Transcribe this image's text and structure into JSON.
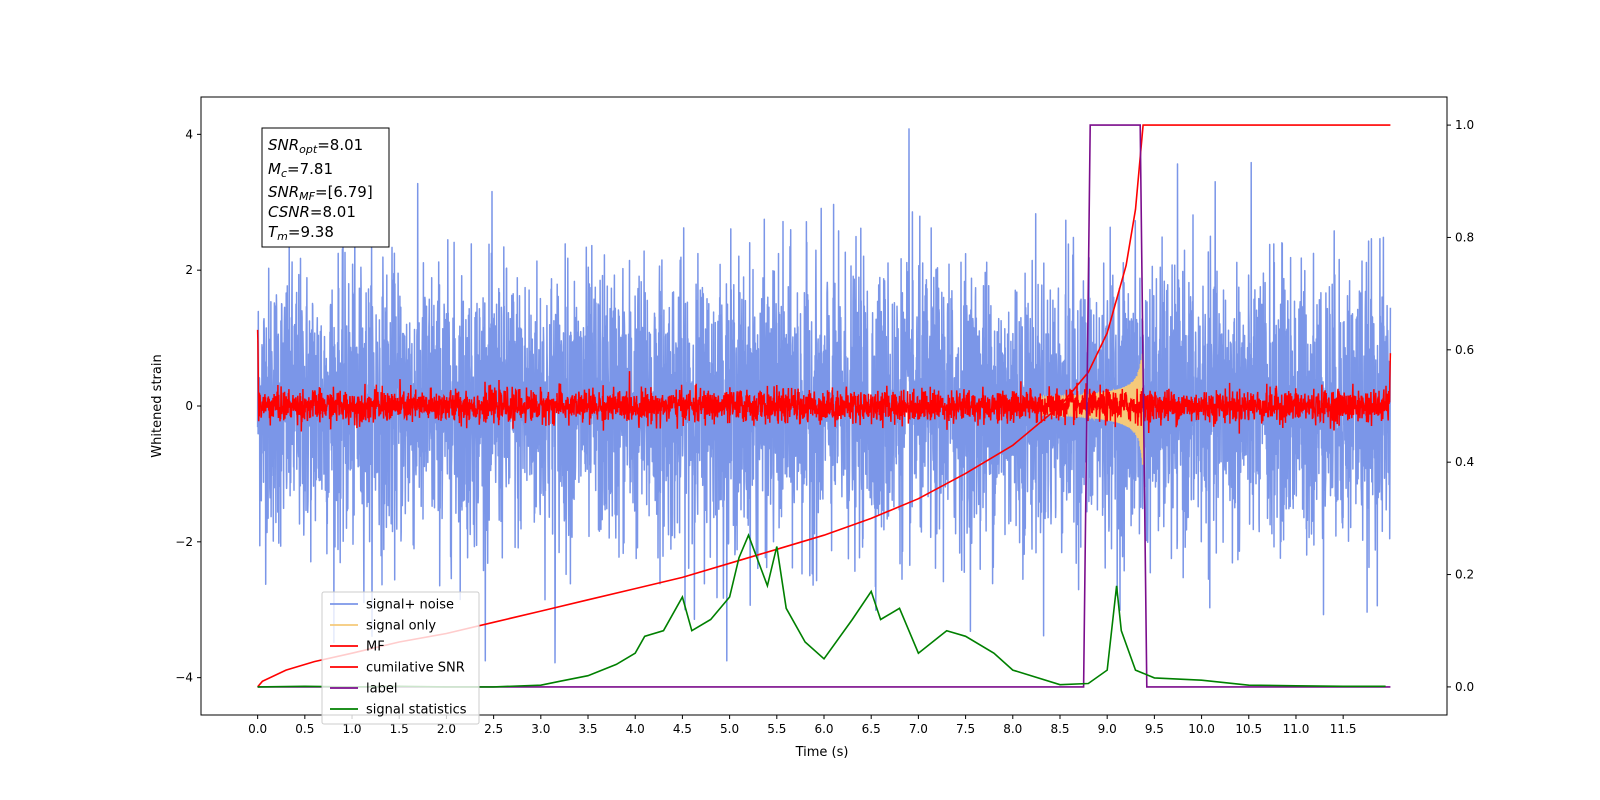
{
  "chart_data": {
    "type": "line",
    "title": "",
    "xlabel": "Time (s)",
    "ylabel": "Whitened strain",
    "xlim": [
      -0.6,
      12.6
    ],
    "ylim": [
      -4.55,
      4.55
    ],
    "y2lim": [
      -0.05,
      1.05
    ],
    "x_ticks": [
      "0.0",
      "0.5",
      "1.0",
      "1.5",
      "2.0",
      "2.5",
      "3.0",
      "3.5",
      "4.0",
      "4.5",
      "5.0",
      "5.5",
      "6.0",
      "6.5",
      "7.0",
      "7.5",
      "8.0",
      "8.5",
      "9.0",
      "9.5",
      "10.0",
      "10.5",
      "11.0",
      "11.5"
    ],
    "y_ticks": [
      "4",
      "2",
      "0",
      "−2",
      "−4"
    ],
    "y2_ticks": [
      "1.0",
      "0.8",
      "0.6",
      "0.4",
      "0.2",
      "0.0"
    ],
    "grid": false,
    "legend_position": "lower-left",
    "annotation": {
      "snr_opt": {
        "base": "SNR",
        "sub": "opt",
        "value": "=8.01"
      },
      "mc": {
        "base": "M",
        "sub": "c",
        "value": "=7.81"
      },
      "snr_mf": {
        "base": "SNR",
        "sub": "MF",
        "value": "=[6.79]"
      },
      "csnr": {
        "base": "CSNR",
        "value": "=8.01"
      },
      "tm": {
        "base": "T",
        "sub": "m",
        "value": "=9.38"
      }
    },
    "series": [
      {
        "name": "signal+ noise",
        "color": "#7b96e8",
        "axis": "left",
        "kind": "noise",
        "x_range": [
          0.0,
          12.0
        ],
        "amplitude_sigma": 1.0,
        "extremes": [
          4.08,
          -3.78
        ]
      },
      {
        "name": "signal only",
        "color": "#f5c97a",
        "axis": "left",
        "kind": "chirp",
        "x_range": [
          8.3,
          9.38
        ],
        "peak_amplitude": 0.95
      },
      {
        "name": "MF",
        "color": "#ff0000",
        "axis": "left",
        "kind": "noise",
        "x_range": [
          0.0,
          12.0
        ],
        "amplitude_sigma": 0.12,
        "edge_spikes": [
          1.0,
          0.9
        ]
      },
      {
        "name": "cumilative SNR",
        "color": "#ff0000",
        "axis": "right",
        "x": [
          0.0,
          0.05,
          0.3,
          0.6,
          1.0,
          1.5,
          2.0,
          2.5,
          3.0,
          3.5,
          4.0,
          4.5,
          5.0,
          5.5,
          6.0,
          6.5,
          7.0,
          7.5,
          8.0,
          8.5,
          8.8,
          9.0,
          9.2,
          9.3,
          9.38,
          10.0,
          11.0,
          12.0
        ],
        "y": [
          0.0,
          0.01,
          0.03,
          0.045,
          0.06,
          0.08,
          0.095,
          0.115,
          0.135,
          0.155,
          0.175,
          0.195,
          0.22,
          0.245,
          0.27,
          0.3,
          0.335,
          0.38,
          0.43,
          0.5,
          0.56,
          0.63,
          0.75,
          0.85,
          1.0,
          1.0,
          1.0,
          1.0
        ]
      },
      {
        "name": "label",
        "color": "#7b0d8c",
        "axis": "right",
        "x": [
          0.0,
          8.75,
          8.82,
          9.35,
          9.42,
          12.0
        ],
        "y": [
          0.0,
          0.0,
          1.0,
          1.0,
          0.0,
          0.0
        ]
      },
      {
        "name": "signal statistics",
        "color": "#008000",
        "axis": "right",
        "x": [
          0.0,
          0.5,
          1.0,
          1.5,
          2.0,
          2.5,
          3.0,
          3.2,
          3.5,
          3.8,
          4.0,
          4.1,
          4.3,
          4.5,
          4.6,
          4.8,
          5.0,
          5.1,
          5.2,
          5.4,
          5.5,
          5.6,
          5.8,
          6.0,
          6.3,
          6.5,
          6.6,
          6.8,
          7.0,
          7.3,
          7.5,
          7.8,
          8.0,
          8.5,
          8.8,
          9.0,
          9.1,
          9.15,
          9.3,
          9.5,
          10.0,
          10.5,
          11.0,
          11.5,
          11.95
        ],
        "y": [
          0.0,
          0.001,
          0.0,
          0.001,
          0.0,
          0.0,
          0.003,
          0.01,
          0.02,
          0.04,
          0.06,
          0.09,
          0.1,
          0.16,
          0.1,
          0.12,
          0.16,
          0.23,
          0.27,
          0.18,
          0.25,
          0.14,
          0.08,
          0.05,
          0.12,
          0.17,
          0.12,
          0.14,
          0.06,
          0.1,
          0.09,
          0.06,
          0.03,
          0.004,
          0.006,
          0.03,
          0.18,
          0.1,
          0.03,
          0.016,
          0.012,
          0.003,
          0.002,
          0.001,
          0.001
        ]
      }
    ]
  }
}
